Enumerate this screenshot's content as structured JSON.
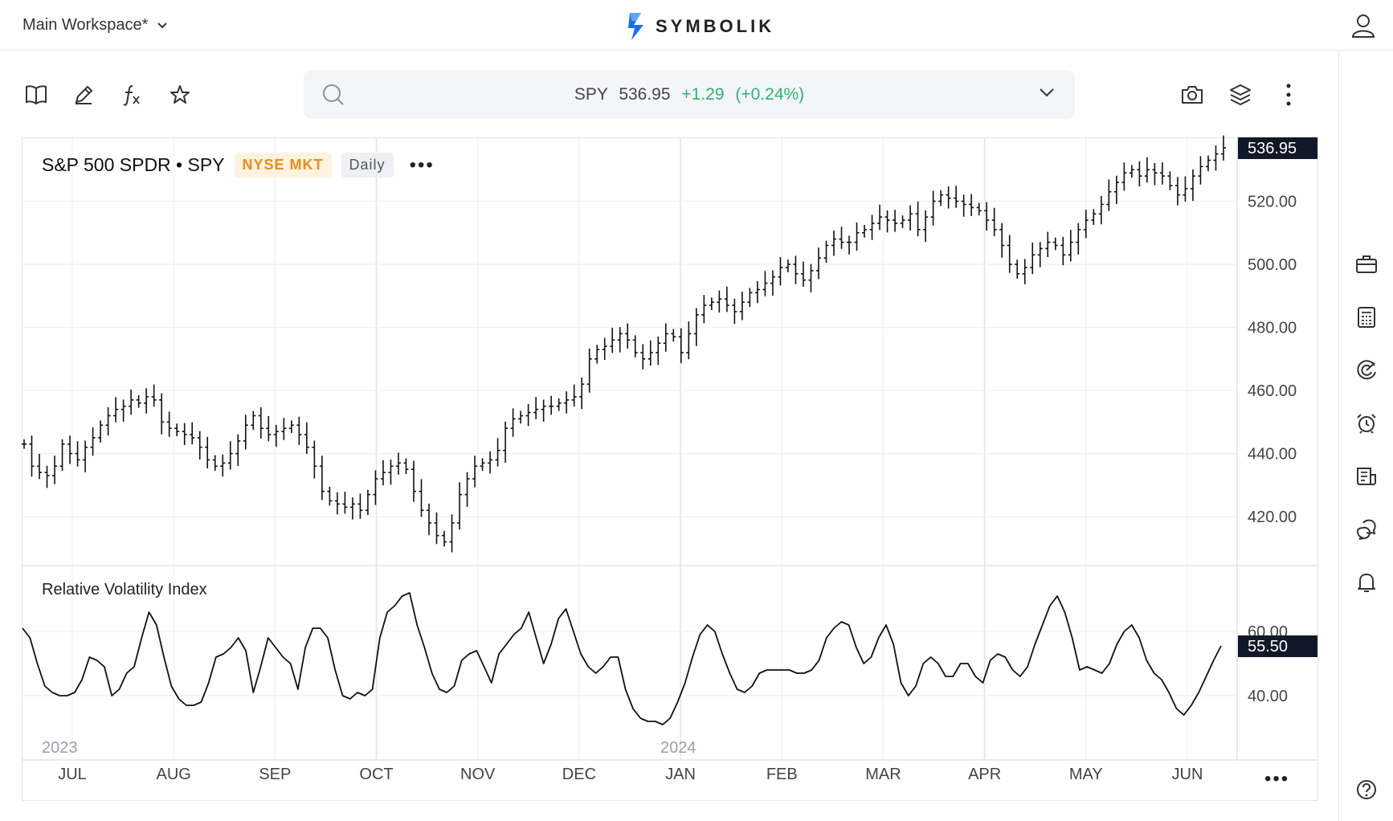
{
  "header": {
    "workspace_label": "Main Workspace*",
    "brand_name": "SYMBOLIK"
  },
  "search": {
    "symbol": "SPY",
    "price": "536.95",
    "change": "+1.29",
    "change_pct": "(+0.24%)"
  },
  "legend": {
    "title": "S&P 500 SPDR • SPY",
    "exchange": "NYSE MKT",
    "interval": "Daily",
    "more": "•••"
  },
  "indicator": {
    "name": "Relative Volatility Index",
    "value_label": "55.50"
  },
  "colors": {
    "up": "#2bb673",
    "badge_exchange": "#f08a1c",
    "price_tag_bg": "#111827",
    "grid": "#eef0f4"
  },
  "icons": {
    "toolbar": [
      "book-icon",
      "pencil-icon",
      "function-icon",
      "star-icon"
    ],
    "toolbar_right": [
      "camera-icon",
      "layers-icon",
      "kebab-icon"
    ],
    "sidebar": [
      "briefcase-icon",
      "calculator-icon",
      "radar-icon",
      "alarm-clock-icon",
      "news-icon",
      "chat-icon",
      "bell-icon",
      "help-icon"
    ]
  },
  "chart_data": [
    {
      "type": "ohlc",
      "title": "S&P 500 SPDR • SPY",
      "ylim": [
        405,
        540
      ],
      "y_ticks": [
        "536.95",
        "520.00",
        "500.00",
        "480.00",
        "460.00",
        "440.00",
        "420.00"
      ],
      "y_tick_values": [
        536.95,
        520,
        500,
        480,
        460,
        440,
        420
      ],
      "last_value": 536.95,
      "x_labels": [
        "JUL",
        "AUG",
        "SEP",
        "OCT",
        "NOV",
        "DEC",
        "JAN",
        "FEB",
        "MAR",
        "APR",
        "MAY",
        "JUN"
      ],
      "year_labels": [
        "2023",
        "2024"
      ],
      "close_series": [
        443,
        436,
        434,
        433,
        436,
        443,
        440,
        438,
        442,
        445,
        449,
        452,
        454,
        455,
        457,
        456,
        458,
        457,
        450,
        448,
        447,
        446,
        445,
        442,
        438,
        436,
        437,
        440,
        444,
        449,
        452,
        448,
        446,
        447,
        448,
        449,
        446,
        442,
        436,
        428,
        425,
        424,
        423,
        424,
        422,
        427,
        432,
        434,
        436,
        437,
        435,
        428,
        422,
        418,
        414,
        412,
        418,
        427,
        432,
        436,
        437,
        438,
        441,
        448,
        451,
        452,
        453,
        454,
        455,
        455,
        456,
        457,
        458,
        462,
        470,
        473,
        474,
        476,
        478,
        476,
        472,
        470,
        472,
        475,
        478,
        477,
        472,
        478,
        484,
        487,
        488,
        489,
        487,
        485,
        488,
        491,
        492,
        494,
        496,
        499,
        500,
        497,
        495,
        498,
        502,
        506,
        508,
        507,
        507,
        510,
        511,
        513,
        515,
        514,
        513,
        514,
        516,
        511,
        515,
        520,
        522,
        521,
        520,
        519,
        518,
        517,
        514,
        511,
        506,
        500,
        497,
        499,
        503,
        505,
        507,
        506,
        503,
        507,
        511,
        514,
        516,
        519,
        523,
        526,
        529,
        530,
        528,
        530,
        529,
        528,
        525,
        522,
        524,
        528,
        531,
        533,
        535,
        536.95
      ]
    },
    {
      "type": "line",
      "title": "Relative Volatility Index",
      "ylim": [
        20,
        80
      ],
      "y_ticks": [
        "60.00",
        "40.00"
      ],
      "y_tick_values": [
        60,
        40
      ],
      "last_value": 55.5,
      "values": [
        61,
        58,
        50,
        43,
        41,
        40,
        40,
        41,
        45,
        52,
        51,
        49,
        40,
        42,
        47,
        49,
        58,
        66,
        62,
        52,
        43,
        39,
        37,
        37,
        38,
        44,
        52,
        53,
        55,
        58,
        54,
        41,
        49,
        58,
        55,
        52,
        50,
        42,
        55,
        61,
        61,
        58,
        48,
        40,
        39,
        41,
        40,
        42,
        58,
        66,
        68,
        71,
        72,
        62,
        55,
        47,
        42,
        41,
        43,
        51,
        53,
        54,
        49,
        44,
        53,
        56,
        59,
        61,
        66,
        58,
        50,
        56,
        64,
        67,
        60,
        53,
        49,
        47,
        49,
        52,
        52,
        42,
        36,
        33,
        32,
        32,
        31,
        33,
        38,
        44,
        52,
        59,
        62,
        60,
        53,
        47,
        42,
        41,
        43,
        47,
        48,
        48,
        48,
        48,
        47,
        47,
        48,
        51,
        58,
        61,
        63,
        62,
        55,
        50,
        52,
        58,
        62,
        56,
        44,
        40,
        43,
        50,
        52,
        50,
        46,
        46,
        50,
        50,
        46,
        44,
        51,
        53,
        52,
        48,
        46,
        49,
        56,
        62,
        68,
        71,
        66,
        58,
        48,
        49,
        48,
        47,
        50,
        56,
        60,
        62,
        58,
        51,
        47,
        45,
        41,
        36,
        34,
        37,
        41,
        46,
        51,
        55.5
      ]
    }
  ]
}
